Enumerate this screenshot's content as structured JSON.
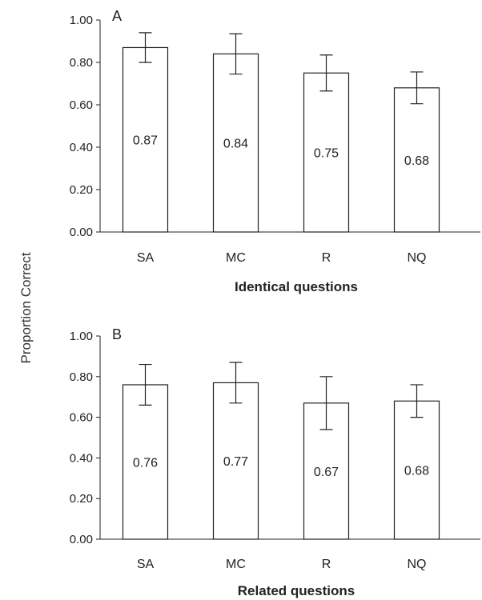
{
  "figure": {
    "ylabel": "Proportion Correct"
  },
  "chart_data": [
    {
      "type": "bar",
      "panel_label": "A",
      "xlabel": "Identical questions",
      "categories": [
        "SA",
        "MC",
        "R",
        "NQ"
      ],
      "values": [
        0.87,
        0.84,
        0.75,
        0.68
      ],
      "value_labels": [
        "0.87",
        "0.84",
        "0.75",
        "0.68"
      ],
      "error": [
        0.07,
        0.095,
        0.085,
        0.075
      ],
      "ylim": [
        0,
        1
      ],
      "yticks": [
        "0.00",
        "0.20",
        "0.40",
        "0.60",
        "0.80",
        "1.00"
      ],
      "grid": false
    },
    {
      "type": "bar",
      "panel_label": "B",
      "xlabel": "Related questions",
      "categories": [
        "SA",
        "MC",
        "R",
        "NQ"
      ],
      "values": [
        0.76,
        0.77,
        0.67,
        0.68
      ],
      "value_labels": [
        "0.76",
        "0.77",
        "0.67",
        "0.68"
      ],
      "error": [
        0.1,
        0.1,
        0.13,
        0.08
      ],
      "ylim": [
        0,
        1
      ],
      "yticks": [
        "0.00",
        "0.20",
        "0.40",
        "0.60",
        "0.80",
        "1.00"
      ],
      "grid": false
    }
  ]
}
